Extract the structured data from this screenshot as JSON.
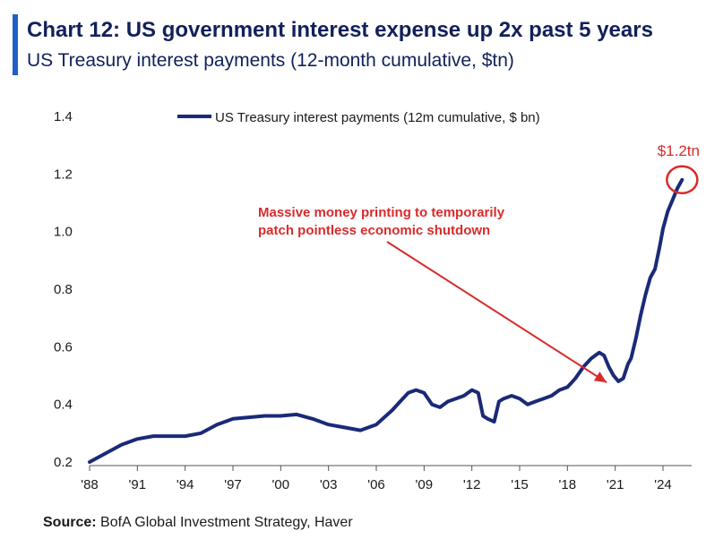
{
  "header": {
    "title": "Chart 12: US government interest expense up 2x past 5 years",
    "subtitle": "US Treasury interest payments (12-month cumulative, $tn)"
  },
  "colors": {
    "brand_bar": "#1f5fc7",
    "title_text": "#12205a",
    "line": "#1a2a78",
    "annotation": "#d92b2b"
  },
  "footer": {
    "source_label": "Source:",
    "source_text": " BofA Global Investment Strategy, Haver"
  },
  "chart_data": {
    "type": "line",
    "title": "Chart 12: US government interest expense up 2x past 5 years",
    "subtitle": "US Treasury interest payments (12-month cumulative, $tn)",
    "xlabel": "",
    "ylabel": "",
    "xlim": [
      1988,
      2025.8
    ],
    "ylim": [
      0.2,
      1.4
    ],
    "yticks": [
      0.2,
      0.4,
      0.6,
      0.8,
      1.0,
      1.2,
      1.4
    ],
    "ytick_labels": [
      "0.2",
      "0.4",
      "0.6",
      "0.8",
      "1.0",
      "1.2",
      "1.4"
    ],
    "xticks": [
      1988,
      1991,
      1994,
      1997,
      2000,
      2003,
      2006,
      2009,
      2012,
      2015,
      2018,
      2021,
      2024
    ],
    "xtick_labels": [
      "'88",
      "'91",
      "'94",
      "'97",
      "'00",
      "'03",
      "'06",
      "'09",
      "'12",
      "'15",
      "'18",
      "'21",
      "'24"
    ],
    "legend": {
      "label": "US Treasury interest payments (12m cumulative, $ bn)",
      "position": "top-center"
    },
    "series": [
      {
        "name": "US Treasury interest payments (12m cumulative, $ bn)",
        "x": [
          1988.0,
          1989.0,
          1990.0,
          1991.0,
          1992.0,
          1993.0,
          1994.0,
          1995.0,
          1996.0,
          1997.0,
          1998.0,
          1999.0,
          2000.0,
          2001.0,
          2002.0,
          2003.0,
          2004.0,
          2005.0,
          2006.0,
          2007.0,
          2007.5,
          2008.0,
          2008.5,
          2009.0,
          2009.5,
          2010.0,
          2010.5,
          2011.0,
          2011.5,
          2012.0,
          2012.4,
          2012.7,
          2013.0,
          2013.4,
          2013.7,
          2014.0,
          2014.5,
          2015.0,
          2015.5,
          2016.0,
          2016.5,
          2017.0,
          2017.5,
          2018.0,
          2018.5,
          2019.0,
          2019.5,
          2020.0,
          2020.3,
          2020.6,
          2020.9,
          2021.2,
          2021.5,
          2021.8,
          2022.0,
          2022.3,
          2022.6,
          2022.9,
          2023.2,
          2023.5,
          2023.8,
          2024.0,
          2024.3,
          2024.6,
          2024.9,
          2025.2
        ],
        "values": [
          0.2,
          0.23,
          0.26,
          0.28,
          0.29,
          0.29,
          0.29,
          0.3,
          0.33,
          0.35,
          0.355,
          0.36,
          0.36,
          0.365,
          0.35,
          0.33,
          0.32,
          0.31,
          0.33,
          0.38,
          0.41,
          0.44,
          0.45,
          0.44,
          0.4,
          0.39,
          0.41,
          0.42,
          0.43,
          0.45,
          0.44,
          0.36,
          0.35,
          0.34,
          0.41,
          0.42,
          0.43,
          0.42,
          0.4,
          0.41,
          0.42,
          0.43,
          0.45,
          0.46,
          0.49,
          0.53,
          0.56,
          0.58,
          0.57,
          0.53,
          0.5,
          0.48,
          0.49,
          0.54,
          0.56,
          0.63,
          0.71,
          0.78,
          0.84,
          0.87,
          0.95,
          1.01,
          1.07,
          1.11,
          1.15,
          1.18
        ]
      }
    ],
    "annotations": [
      {
        "text": "$1.2tn",
        "x": 2025.2,
        "y": 1.18,
        "type": "circle-label"
      },
      {
        "text": "Massive money printing to temporarily patch pointless economic shutdown",
        "line1": "Massive money printing to temporarily",
        "line2": "patch pointless economic shutdown",
        "arrow_to_x": 2020.8,
        "arrow_to_y": 0.47,
        "type": "arrow-label"
      }
    ]
  }
}
